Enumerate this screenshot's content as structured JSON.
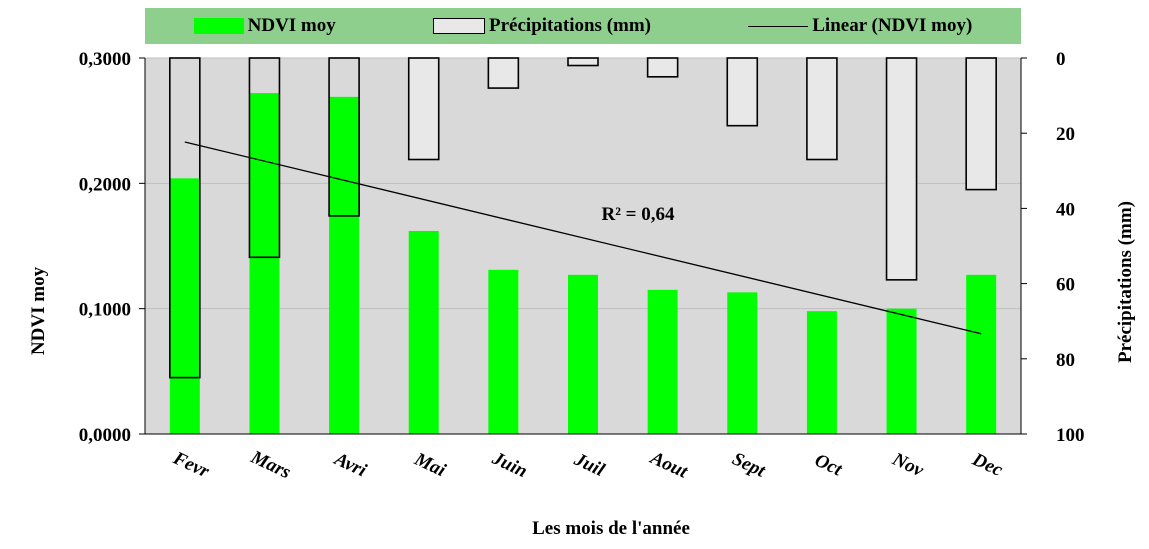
{
  "chart_data": {
    "type": "bar",
    "categories": [
      "Fevr",
      "Mars",
      "Avri",
      "Mai",
      "Juin",
      "Juil",
      "Aout",
      "Sept",
      "Oct",
      "Nov",
      "Dec"
    ],
    "series": [
      {
        "name": "NDVI moy",
        "axis": "left",
        "color": "#00ff00",
        "values": [
          0.204,
          0.272,
          0.269,
          0.162,
          0.131,
          0.127,
          0.115,
          0.113,
          0.098,
          0.1,
          0.127
        ]
      },
      {
        "name": "Précipitations (mm)",
        "axis": "right",
        "inverted": true,
        "color": "#e8e8e8",
        "values": [
          85,
          53,
          42,
          27,
          8,
          2,
          5,
          18,
          27,
          59,
          35
        ]
      }
    ],
    "trendline": {
      "name": "Linear (NDVI moy)",
      "type": "linear",
      "series": "NDVI moy",
      "start": 0.233,
      "end": 0.08,
      "r2_label": "R² = 0,64"
    },
    "xlabel": "Les mois de l'année",
    "ylabel": "NDVI moy",
    "ylim": [
      0,
      0.3
    ],
    "yticks": [
      "0,0000",
      "0,1000",
      "0,2000",
      "0,3000"
    ],
    "ylabel_right": "Précipitations (mm)",
    "ylim_right": [
      0,
      100
    ],
    "yticks_right": [
      "0",
      "20",
      "40",
      "60",
      "80",
      "100"
    ],
    "legend_position": "top",
    "grid": true,
    "plot_background": "#d9d9d9",
    "legend_background": "#8fcf8e"
  }
}
